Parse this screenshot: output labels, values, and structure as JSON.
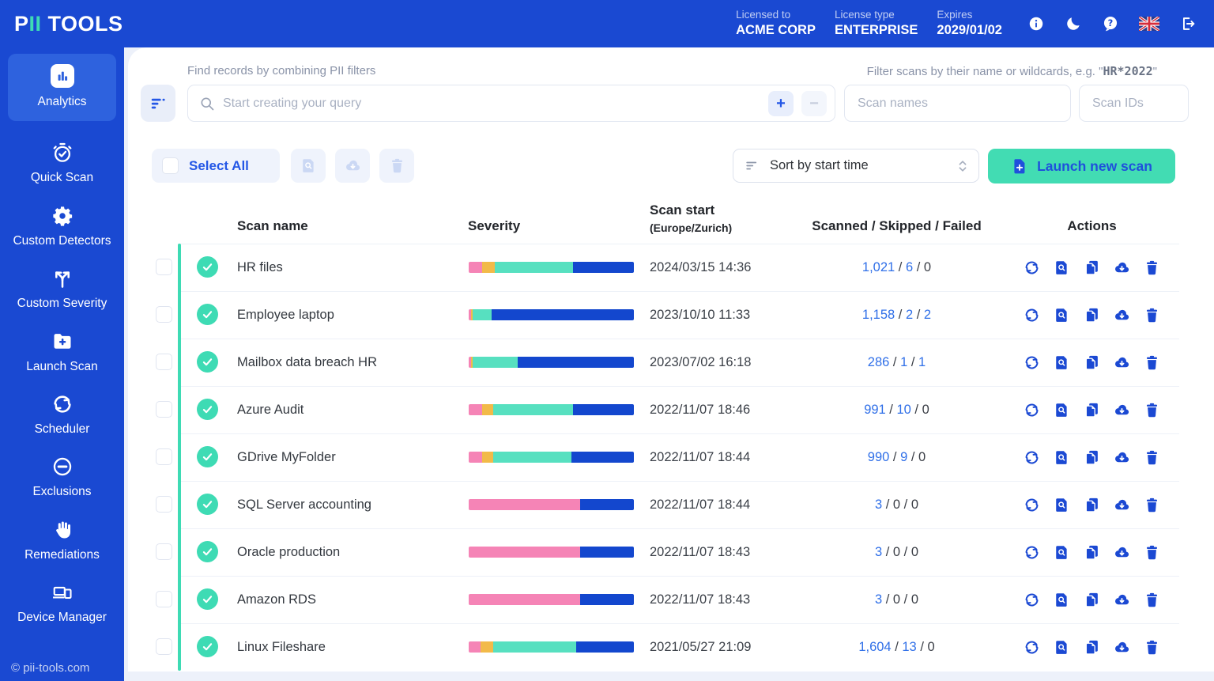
{
  "header": {
    "logo_part1": "P",
    "logo_part2": "II",
    "logo_part3": " TOOLS",
    "license": [
      {
        "label": "Licensed to",
        "value": "ACME CORP"
      },
      {
        "label": "License type",
        "value": "ENTERPRISE"
      },
      {
        "label": "Expires",
        "value": "2029/01/02"
      }
    ],
    "icons": [
      "info-icon",
      "dark-mode-icon",
      "help-icon",
      "language-flag-icon",
      "logout-icon"
    ]
  },
  "sidebar": {
    "items": [
      {
        "label": "Analytics",
        "icon": "bar-chart",
        "active": true
      },
      {
        "label": "Quick Scan",
        "icon": "stopwatch",
        "active": false
      },
      {
        "label": "Custom Detectors",
        "icon": "gear",
        "active": false
      },
      {
        "label": "Custom Severity",
        "icon": "branch-arrows",
        "active": false
      },
      {
        "label": "Launch Scan",
        "icon": "folder-plus",
        "active": false
      },
      {
        "label": "Scheduler",
        "icon": "refresh",
        "active": false
      },
      {
        "label": "Exclusions",
        "icon": "minus-circle",
        "active": false
      },
      {
        "label": "Remediations",
        "icon": "hand",
        "active": false
      },
      {
        "label": "Device Manager",
        "icon": "devices",
        "active": false
      }
    ],
    "footer": "© pii-tools.com"
  },
  "filters": {
    "query_label": "Find records by combining PII filters",
    "query_placeholder": "Start creating your query",
    "add_button": "+",
    "remove_button": "−",
    "scan_filter_label_prefix": "Filter scans by their name or wildcards, e.g. \"",
    "scan_filter_label_code": "HR*2022",
    "scan_filter_label_suffix": "\"",
    "scan_names_placeholder": "Scan names",
    "scan_ids_placeholder": "Scan IDs"
  },
  "toolbar": {
    "select_all_label": "Select All",
    "bulk_icons": [
      "view-report-icon",
      "download-icon",
      "delete-icon"
    ],
    "sort_label": "Sort by start time",
    "launch_label": "Launch new scan"
  },
  "table": {
    "headers": {
      "name": "Scan name",
      "severity": "Severity",
      "start": "Scan start",
      "start_sub": "(Europe/Zurich)",
      "counts": "Scanned / Skipped / Failed",
      "actions": "Actions"
    },
    "row_actions": [
      "rescan",
      "view-report",
      "duplicate",
      "download",
      "delete"
    ],
    "rows": [
      {
        "name": "HR files",
        "start": "2024/03/15 14:36",
        "scanned": "1,021",
        "skipped": "6",
        "failed": "0",
        "scanned_link": true,
        "skipped_link": true,
        "failed_link": false,
        "severity": [
          [
            "pink",
            8.2
          ],
          [
            "orange",
            7.6
          ],
          [
            "teal",
            47.2
          ],
          [
            "blue",
            37
          ]
        ]
      },
      {
        "name": "Employee laptop",
        "start": "2023/10/10 11:33",
        "scanned": "1,158",
        "skipped": "2",
        "failed": "2",
        "scanned_link": true,
        "skipped_link": true,
        "failed_link": true,
        "severity": [
          [
            "pink",
            1.5
          ],
          [
            "orange",
            1
          ],
          [
            "teal",
            11.5
          ],
          [
            "blue",
            86
          ]
        ]
      },
      {
        "name": "Mailbox data breach HR",
        "start": "2023/07/02 16:18",
        "scanned": "286",
        "skipped": "1",
        "failed": "1",
        "scanned_link": true,
        "skipped_link": true,
        "failed_link": true,
        "severity": [
          [
            "pink",
            1.3
          ],
          [
            "orange",
            1.2
          ],
          [
            "teal",
            27
          ],
          [
            "blue",
            70.5
          ]
        ]
      },
      {
        "name": "Azure Audit",
        "start": "2022/11/07 18:46",
        "scanned": "991",
        "skipped": "10",
        "failed": "0",
        "scanned_link": true,
        "skipped_link": true,
        "failed_link": false,
        "severity": [
          [
            "pink",
            7.9
          ],
          [
            "orange",
            7.1
          ],
          [
            "teal",
            48
          ],
          [
            "blue",
            37
          ]
        ]
      },
      {
        "name": "GDrive MyFolder",
        "start": "2022/11/07 18:44",
        "scanned": "990",
        "skipped": "9",
        "failed": "0",
        "scanned_link": true,
        "skipped_link": true,
        "failed_link": false,
        "severity": [
          [
            "pink",
            7.9
          ],
          [
            "orange",
            7.1
          ],
          [
            "teal",
            47
          ],
          [
            "blue",
            38
          ]
        ]
      },
      {
        "name": "SQL Server accounting",
        "start": "2022/11/07 18:44",
        "scanned": "3",
        "skipped": "0",
        "failed": "0",
        "scanned_link": true,
        "skipped_link": false,
        "failed_link": false,
        "severity": [
          [
            "pink",
            67.4
          ],
          [
            "blue",
            32.6
          ]
        ]
      },
      {
        "name": "Oracle production",
        "start": "2022/11/07 18:43",
        "scanned": "3",
        "skipped": "0",
        "failed": "0",
        "scanned_link": true,
        "skipped_link": false,
        "failed_link": false,
        "severity": [
          [
            "pink",
            67.4
          ],
          [
            "blue",
            32.6
          ]
        ]
      },
      {
        "name": "Amazon RDS",
        "start": "2022/11/07 18:43",
        "scanned": "3",
        "skipped": "0",
        "failed": "0",
        "scanned_link": true,
        "skipped_link": false,
        "failed_link": false,
        "severity": [
          [
            "pink",
            67.4
          ],
          [
            "blue",
            32.6
          ]
        ]
      },
      {
        "name": "Linux Fileshare",
        "start": "2021/05/27 21:09",
        "scanned": "1,604",
        "skipped": "13",
        "failed": "0",
        "scanned_link": true,
        "skipped_link": true,
        "failed_link": false,
        "severity": [
          [
            "pink",
            7
          ],
          [
            "orange",
            7.9
          ],
          [
            "teal",
            50
          ],
          [
            "blue",
            35.1
          ]
        ]
      }
    ]
  },
  "colors": {
    "header_blue": "#1A49D2",
    "active_blue": "#2E62DE",
    "accent_teal": "#3EDBB4",
    "launch_teal": "#42DCB3",
    "link_blue": "#2F6FE8",
    "action_blue": "#1B49D3",
    "bar_pink": "#F584B6",
    "bar_orange": "#F2BA49",
    "bar_teal": "#57E0C0",
    "bar_blue": "#1347CE"
  }
}
